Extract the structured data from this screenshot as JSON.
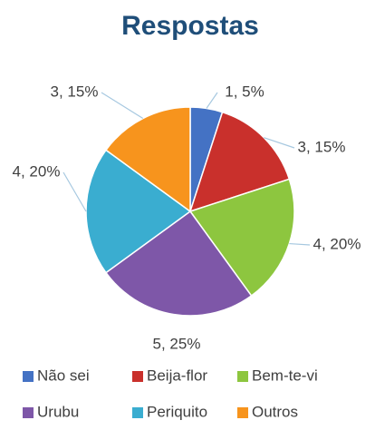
{
  "chart_data": {
    "type": "pie",
    "title": "Respostas",
    "categories": [
      "Não sei",
      "Beija-flor",
      "Bem-te-vi",
      "Urubu",
      "Periquito",
      "Outros"
    ],
    "values": [
      1,
      3,
      4,
      5,
      4,
      3
    ],
    "value_labels": [
      "1, 5%",
      "3, 15%",
      "4, 20%",
      "5, 25%",
      "4, 20%",
      "3, 15%"
    ],
    "colors": [
      "#4472c4",
      "#c9302c",
      "#8dc63f",
      "#7e57a8",
      "#3aadd0",
      "#f7941d"
    ],
    "legend": "bottom"
  }
}
